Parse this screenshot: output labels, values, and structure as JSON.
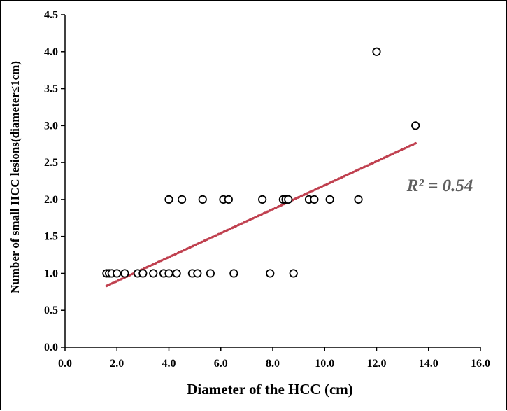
{
  "chart_data": {
    "type": "scatter",
    "title": "",
    "xlabel": "Diameter of the HCC  (cm)",
    "ylabel": "Number of small HCC lesions(diameter≤1cm)",
    "xlim": [
      0,
      16
    ],
    "ylim": [
      0,
      4.5
    ],
    "x_ticks": [
      "0.0",
      "2.0",
      "4.0",
      "6.0",
      "8.0",
      "10.0",
      "12.0",
      "14.0",
      "16.0"
    ],
    "y_ticks": [
      "0.0",
      "0.5",
      "1.0",
      "1.5",
      "2.0",
      "2.5",
      "3.0",
      "3.5",
      "4.0",
      "4.5"
    ],
    "grid": false,
    "series": [
      {
        "marker": "open-circle",
        "color": "#000000",
        "points": [
          {
            "x": 1.6,
            "y": 1.0
          },
          {
            "x": 1.7,
            "y": 1.0
          },
          {
            "x": 1.8,
            "y": 1.0
          },
          {
            "x": 2.0,
            "y": 1.0
          },
          {
            "x": 2.3,
            "y": 1.0
          },
          {
            "x": 2.8,
            "y": 1.0
          },
          {
            "x": 3.0,
            "y": 1.0
          },
          {
            "x": 3.4,
            "y": 1.0
          },
          {
            "x": 3.8,
            "y": 1.0
          },
          {
            "x": 4.0,
            "y": 1.0
          },
          {
            "x": 4.3,
            "y": 1.0
          },
          {
            "x": 4.9,
            "y": 1.0
          },
          {
            "x": 5.1,
            "y": 1.0
          },
          {
            "x": 5.6,
            "y": 1.0
          },
          {
            "x": 6.5,
            "y": 1.0
          },
          {
            "x": 7.9,
            "y": 1.0
          },
          {
            "x": 8.8,
            "y": 1.0
          },
          {
            "x": 4.0,
            "y": 2.0
          },
          {
            "x": 4.5,
            "y": 2.0
          },
          {
            "x": 5.3,
            "y": 2.0
          },
          {
            "x": 6.1,
            "y": 2.0
          },
          {
            "x": 6.3,
            "y": 2.0
          },
          {
            "x": 7.6,
            "y": 2.0
          },
          {
            "x": 8.4,
            "y": 2.0
          },
          {
            "x": 8.5,
            "y": 2.0
          },
          {
            "x": 8.6,
            "y": 2.0
          },
          {
            "x": 9.4,
            "y": 2.0
          },
          {
            "x": 9.6,
            "y": 2.0
          },
          {
            "x": 10.2,
            "y": 2.0
          },
          {
            "x": 11.3,
            "y": 2.0
          },
          {
            "x": 12.0,
            "y": 4.0
          },
          {
            "x": 13.5,
            "y": 3.0
          }
        ]
      }
    ],
    "trendline": {
      "type": "linear",
      "x_range": [
        1.6,
        13.5
      ],
      "y_range": [
        0.83,
        2.76
      ],
      "color": "#c0404f",
      "style": "dotted"
    },
    "annotation": {
      "text": "R² = 0.54"
    }
  }
}
